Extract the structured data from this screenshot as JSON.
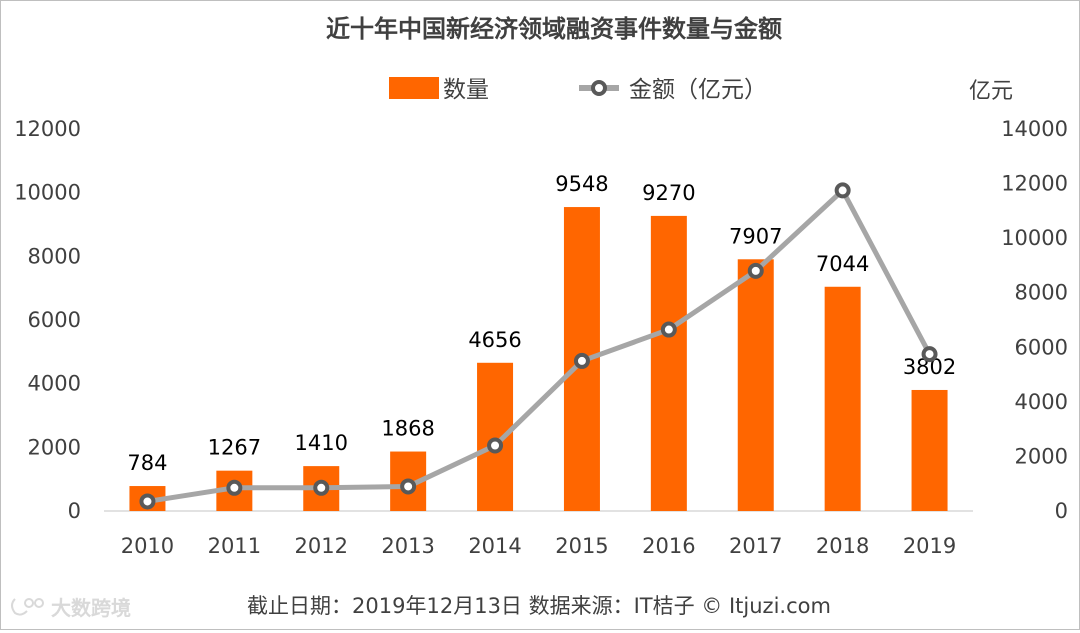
{
  "chart_data": {
    "type": "bar+line",
    "title": "近十年中国新经济领域融资事件数量与金额",
    "categories": [
      "2010",
      "2011",
      "2012",
      "2013",
      "2014",
      "2015",
      "2016",
      "2017",
      "2018",
      "2019"
    ],
    "series": [
      {
        "name": "数量",
        "kind": "bar",
        "axis": "left",
        "values": [
          784,
          1267,
          1410,
          1868,
          4656,
          9548,
          9270,
          7907,
          7044,
          3802
        ]
      },
      {
        "name": "金额（亿元）",
        "kind": "line",
        "axis": "right",
        "values": [
          350,
          850,
          850,
          900,
          2400,
          5500,
          6650,
          8800,
          11750,
          5750
        ]
      }
    ],
    "left_axis": {
      "ylim": [
        0,
        12000
      ],
      "ticks": [
        "0",
        "2000",
        "4000",
        "6000",
        "8000",
        "10000",
        "12000"
      ]
    },
    "right_axis": {
      "ylim": [
        0,
        14000
      ],
      "ticks": [
        "0",
        "2000",
        "4000",
        "6000",
        "8000",
        "10000",
        "12000",
        "14000"
      ],
      "unit_label": "亿元"
    },
    "bar_labels": [
      "784",
      "1267",
      "1410",
      "1868",
      "4656",
      "9548",
      "9270",
      "7907",
      "7044",
      "3802"
    ],
    "legend_position": "top-center"
  },
  "footer": {
    "source": "截止日期：2019年12月13日    数据来源：IT桔子 © Itjuzi.com",
    "watermark": "大数跨境"
  },
  "colors": {
    "bar": "#ff6600",
    "line": "#a6a6a6",
    "marker_fill": "#ffffff",
    "marker_stroke": "#595959"
  }
}
